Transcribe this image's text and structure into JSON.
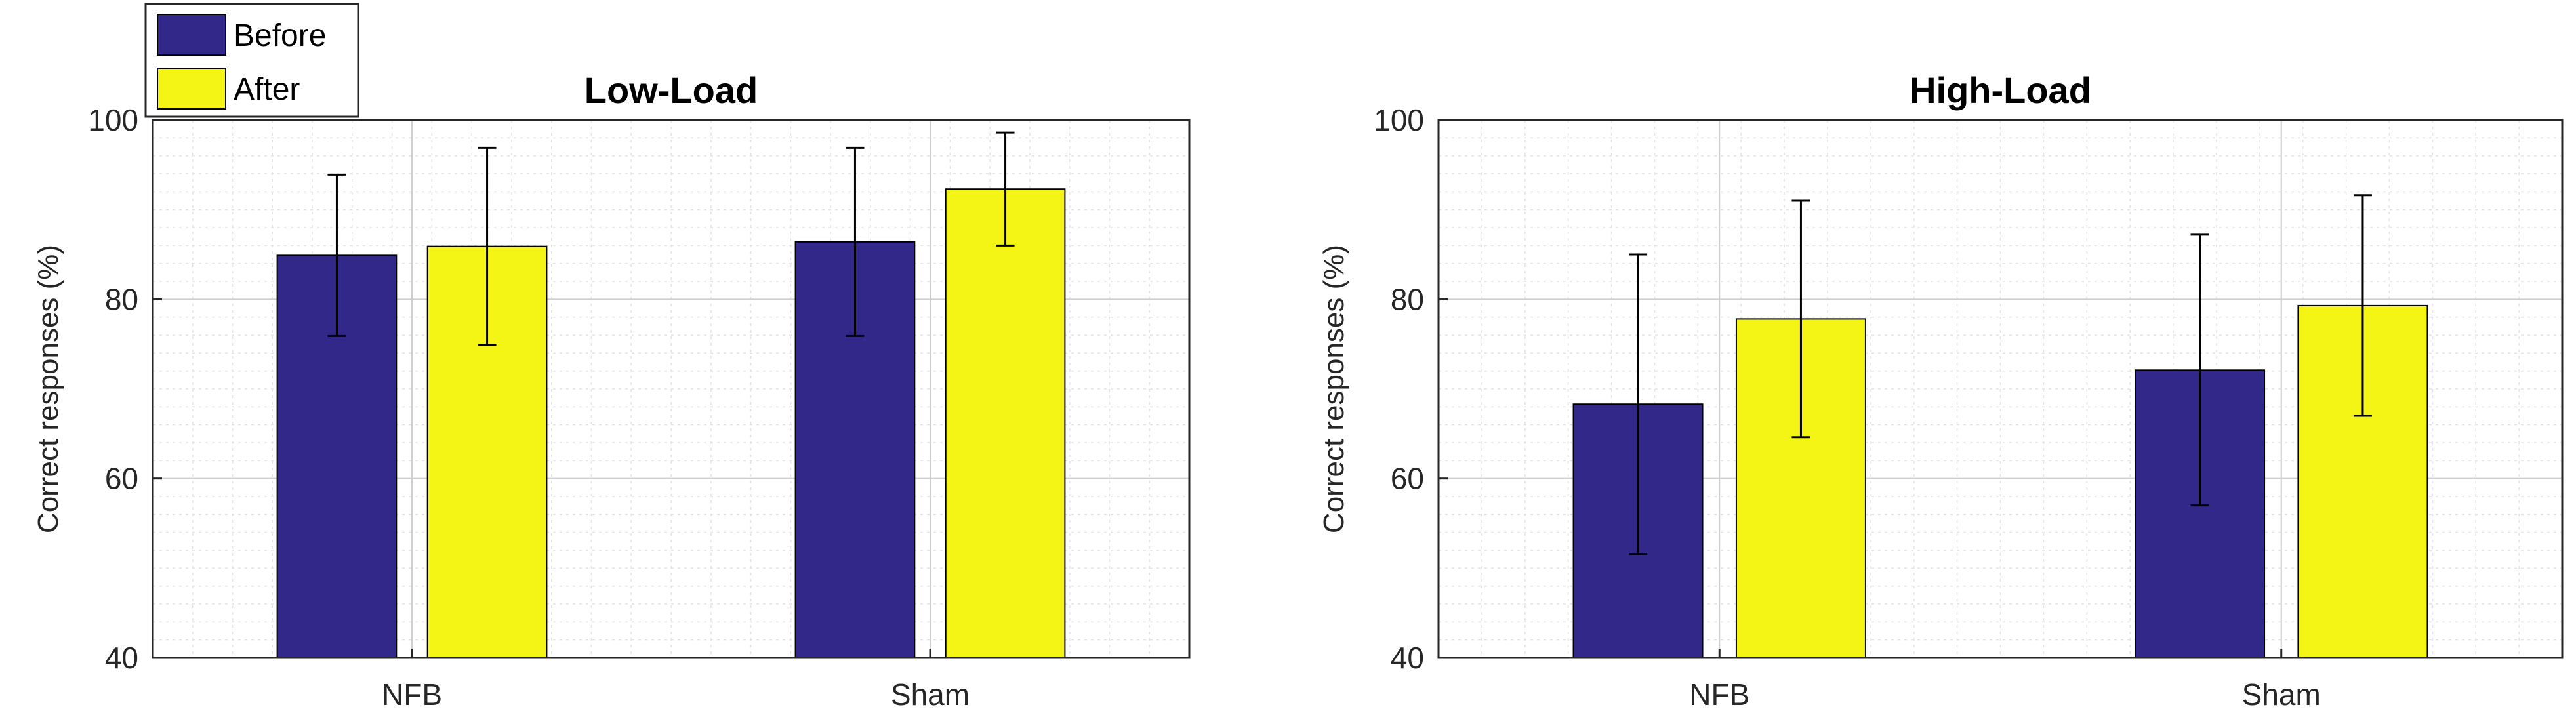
{
  "chart_data": [
    {
      "type": "bar",
      "title": "Low-Load",
      "xlabel": "",
      "ylabel": "Correct responses (%)",
      "ylim": [
        40,
        100
      ],
      "yticks": [
        40,
        60,
        80,
        100
      ],
      "categories": [
        "NFB",
        "Sham"
      ],
      "grid": true,
      "minor_grid": true,
      "legend": "top-left",
      "series": [
        {
          "name": "Before",
          "color": "#32288a",
          "values": [
            84.9,
            86.4
          ],
          "error": [
            9.0,
            10.5
          ]
        },
        {
          "name": "After",
          "color": "#f5f515",
          "values": [
            85.9,
            92.3
          ],
          "error": [
            11.0,
            6.3
          ]
        }
      ]
    },
    {
      "type": "bar",
      "title": "High-Load",
      "xlabel": "",
      "ylabel": "Correct responses (%)",
      "ylim": [
        40,
        100
      ],
      "yticks": [
        40,
        60,
        80,
        100
      ],
      "categories": [
        "NFB",
        "Sham"
      ],
      "grid": true,
      "minor_grid": true,
      "series": [
        {
          "name": "Before",
          "color": "#32288a",
          "values": [
            68.3,
            72.1
          ],
          "error": [
            16.7,
            15.1
          ]
        },
        {
          "name": "After",
          "color": "#f5f515",
          "values": [
            77.8,
            79.3
          ],
          "error": [
            13.2,
            12.3
          ]
        }
      ]
    }
  ]
}
